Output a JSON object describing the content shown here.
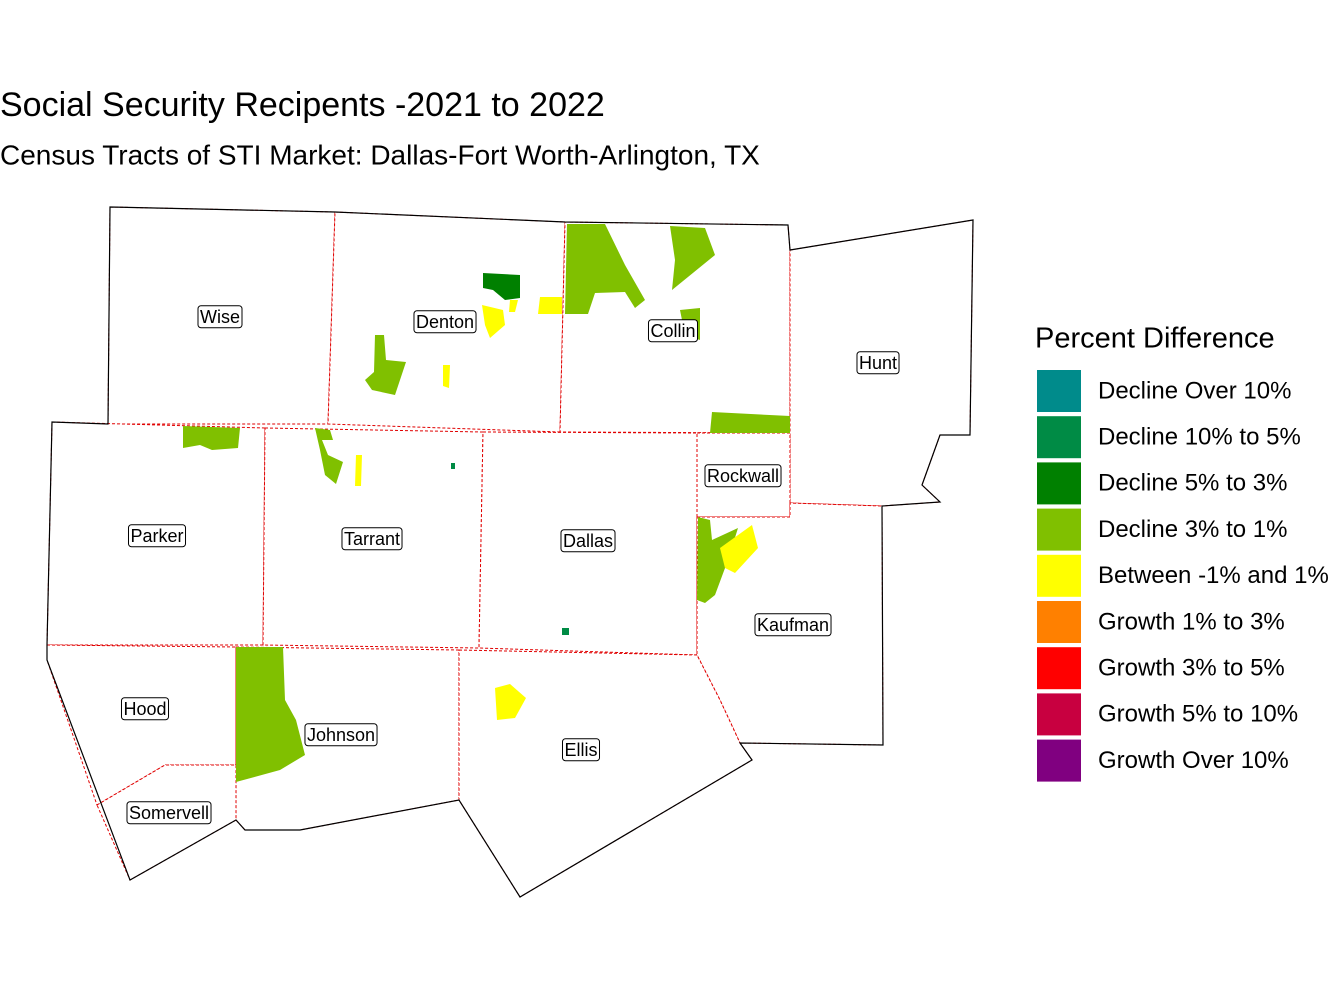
{
  "title": "Social Security Recipents -2021 to 2022",
  "subtitle": "Census Tracts of STI Market: Dallas-Fort Worth-Arlington, TX",
  "counties": [
    "Wise",
    "Denton",
    "Collin",
    "Hunt",
    "Parker",
    "Tarrant",
    "Dallas",
    "Rockwall",
    "Kaufman",
    "Hood",
    "Johnson",
    "Ellis",
    "Somervell"
  ],
  "legend": {
    "title": "Percent Difference",
    "items": [
      {
        "label": "Decline Over 10%",
        "color": "#008b8b"
      },
      {
        "label": "Decline 10% to 5%",
        "color": "#008b45"
      },
      {
        "label": "Decline 5% to 3%",
        "color": "#008000"
      },
      {
        "label": "Decline 3% to 1%",
        "color": "#80c000"
      },
      {
        "label": "Between -1% and 1%",
        "color": "#ffff00"
      },
      {
        "label": "Growth 1% to 3%",
        "color": "#ff8000"
      },
      {
        "label": "Growth 3% to 5%",
        "color": "#ff0000"
      },
      {
        "label": "Growth 5% to 10%",
        "color": "#c80040"
      },
      {
        "label": "Growth Over 10%",
        "color": "#800080"
      }
    ]
  }
}
